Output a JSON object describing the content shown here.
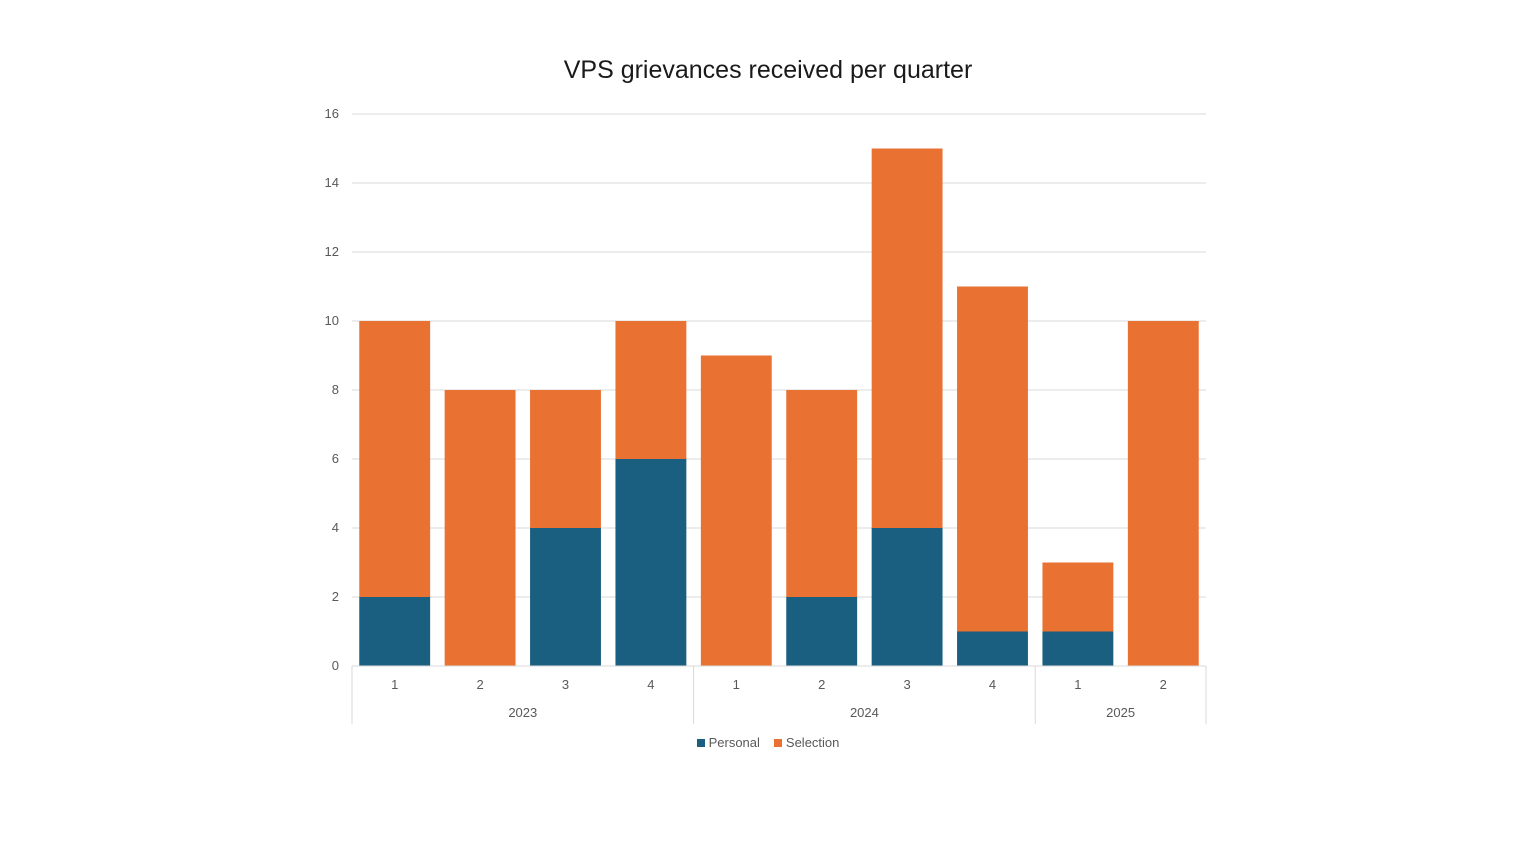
{
  "chart_data": {
    "type": "bar",
    "stacked": true,
    "title": "VPS grievances received per quarter",
    "categories": [
      "1",
      "2",
      "3",
      "4",
      "1",
      "2",
      "3",
      "4",
      "1",
      "2"
    ],
    "groups": [
      {
        "label": "2023",
        "count": 4
      },
      {
        "label": "2024",
        "count": 4
      },
      {
        "label": "2025",
        "count": 2
      }
    ],
    "series": [
      {
        "name": "Personal",
        "color": "#1a5f80",
        "values": [
          2,
          0,
          4,
          6,
          0,
          2,
          4,
          1,
          1,
          0
        ]
      },
      {
        "name": "Selection",
        "color": "#e97132",
        "values": [
          8,
          8,
          4,
          4,
          9,
          6,
          11,
          10,
          2,
          10
        ]
      }
    ],
    "ylim": [
      0,
      16
    ],
    "yticks": [
      0,
      2,
      4,
      6,
      8,
      10,
      12,
      14,
      16
    ],
    "grid": true,
    "legend": "bottom"
  }
}
